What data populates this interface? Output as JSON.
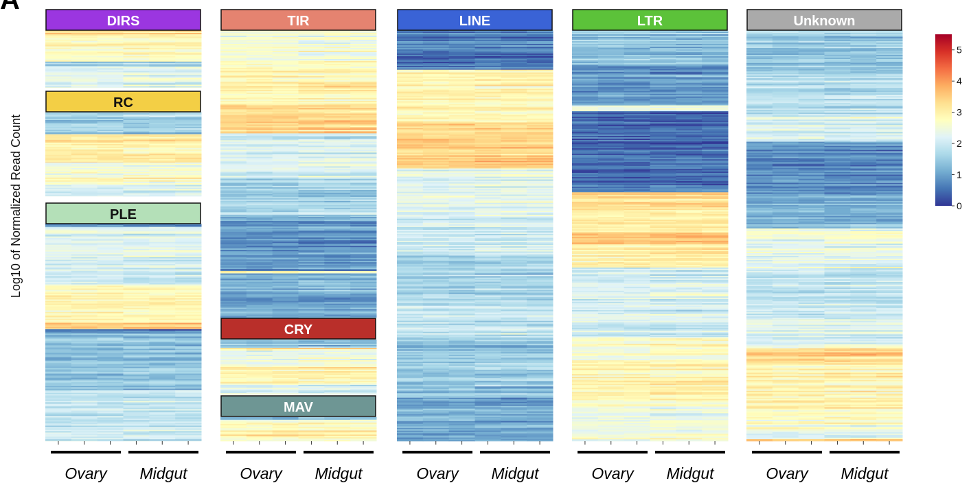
{
  "figure": {
    "panel_label": "A",
    "y_axis_label": "Log10 of Normalized Read Count"
  },
  "colors": {
    "DIRS": "#9b36e0",
    "RC": "#f3cf45",
    "PLE": "#b4e0b8",
    "TIR": "#e58370",
    "CRY": "#b92f2a",
    "MAV": "#6e9694",
    "LINE": "#3a63d6",
    "LTR": "#5cc23a",
    "Unknown": "#aaaaaa",
    "colormap": [
      "#313695",
      "#4575b4",
      "#74add1",
      "#abd9e9",
      "#e0f3f8",
      "#ffffbf",
      "#fee090",
      "#fdae61",
      "#f46d43",
      "#d73027",
      "#a50026"
    ]
  },
  "chart_data": {
    "type": "heatmap",
    "value_label": "",
    "colorbar": {
      "min": 0,
      "max": 5.5,
      "ticks": [
        0,
        1,
        2,
        3,
        4,
        5
      ],
      "colormap": "RdYlBu_r"
    },
    "columns": [
      "Ovary",
      "Ovary",
      "Ovary",
      "Midgut",
      "Midgut",
      "Midgut"
    ],
    "sample_groups": [
      "Ovary",
      "Midgut"
    ],
    "categories": [
      {
        "name": "DIRS",
        "segments": [
          [
            3.3,
            1
          ],
          [
            2.8,
            5
          ],
          [
            1.5,
            1
          ],
          [
            2.2,
            4
          ]
        ]
      },
      {
        "name": "RC",
        "segments": [
          [
            1.5,
            8
          ],
          [
            3.1,
            10
          ],
          [
            2.6,
            8
          ],
          [
            2.3,
            4
          ]
        ]
      },
      {
        "name": "PLE",
        "segments": [
          [
            0.6,
            1
          ],
          [
            2.2,
            18
          ],
          [
            2.8,
            12
          ],
          [
            3.4,
            2
          ],
          [
            0.8,
            1
          ],
          [
            1.4,
            18
          ],
          [
            1.9,
            16
          ]
        ]
      },
      {
        "name": "TIR",
        "segments": [
          [
            2.5,
            12
          ],
          [
            2.9,
            18
          ],
          [
            3.3,
            12
          ],
          [
            2.1,
            18
          ],
          [
            1.6,
            16
          ],
          [
            0.9,
            22
          ],
          [
            2.8,
            1
          ],
          [
            1.1,
            18
          ]
        ]
      },
      {
        "name": "CRY",
        "segments": [
          [
            1.3,
            3
          ],
          [
            3.2,
            1
          ],
          [
            2.4,
            6
          ],
          [
            2.9,
            6
          ],
          [
            2.2,
            4
          ]
        ]
      },
      {
        "name": "MAV",
        "segments": [
          [
            0.9,
            1
          ],
          [
            2.6,
            4
          ],
          [
            3.2,
            2
          ],
          [
            2.7,
            2
          ]
        ]
      },
      {
        "name": "LINE",
        "segments": [
          [
            0.6,
            20
          ],
          [
            2.9,
            26
          ],
          [
            3.4,
            24
          ],
          [
            2.3,
            22
          ],
          [
            2.0,
            20
          ],
          [
            1.6,
            24
          ],
          [
            1.9,
            20
          ],
          [
            1.4,
            30
          ],
          [
            1.1,
            22
          ]
        ]
      },
      {
        "name": "LTR",
        "segments": [
          [
            1.4,
            12
          ],
          [
            0.9,
            14
          ],
          [
            2.4,
            2
          ],
          [
            0.5,
            28
          ],
          [
            3.2,
            14
          ],
          [
            3.6,
            4
          ],
          [
            2.9,
            8
          ],
          [
            2.1,
            24
          ],
          [
            2.7,
            10
          ],
          [
            2.9,
            14
          ],
          [
            2.5,
            12
          ]
        ]
      },
      {
        "name": "Unknown",
        "segments": [
          [
            1.5,
            20
          ],
          [
            1.8,
            22
          ],
          [
            2.2,
            12
          ],
          [
            0.8,
            26
          ],
          [
            1.2,
            16
          ],
          [
            2.7,
            4
          ],
          [
            2.3,
            18
          ],
          [
            1.9,
            22
          ],
          [
            2.2,
            14
          ],
          [
            3.4,
            8
          ],
          [
            2.9,
            22
          ],
          [
            2.6,
            10
          ],
          [
            2.3,
            4
          ],
          [
            3.6,
            1
          ]
        ]
      }
    ]
  }
}
